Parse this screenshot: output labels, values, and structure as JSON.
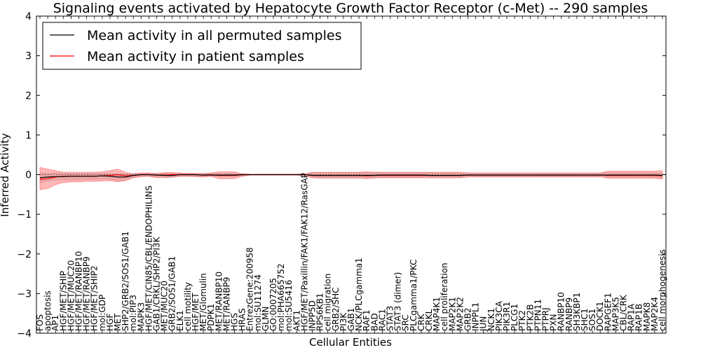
{
  "chart_data": {
    "type": "line",
    "title": "Signaling events activated by Hepatocyte Growth Factor Receptor (c-Met) -- 290 samples",
    "xlabel": "Cellular Entities",
    "ylabel": "Inferred Activity",
    "ylim": [
      -4,
      4
    ],
    "yticks": [
      -4,
      -3,
      -2,
      -1,
      0,
      1,
      2,
      3,
      4
    ],
    "legend_position": "top-left",
    "categories": [
      "FOS",
      "apoptosis",
      "AP1",
      "HGF/MET/SHIP",
      "HGF/MET/MUC20",
      "HGF/MET/RANBP10",
      "HGF/MET/RANBP9",
      "HGF/MET/SHIP2",
      "mol:GDP",
      "HGF",
      "MET",
      "SHP2/GRB2/SOS1/GAB1",
      "mol:PIP3",
      "MAPK3",
      "HGF/MET/CIN85/CBL/ENDOPHILINS",
      "GAB1/CRKL/SHP2/PI3K",
      "MET/MUC20",
      "GRB2/SOS1/GAB1",
      "ELK1",
      "cell motility",
      "HGF/MET",
      "MET/Glomulin",
      "PDPK1",
      "MET/RANBP10",
      "MET/RANBP9",
      "HGS",
      "HRAS",
      "EntrezGene:200958",
      "mol:SU11274",
      "GLMN",
      "GO:0007205",
      "mol:PHA665752",
      "mol:SU5416",
      "AKT1",
      "HGF/MET/Paxillin/FAK1/FAK12/RasGAP",
      "INPP5D",
      "RPS6KB1",
      "cell migration",
      "GRB2/SHC",
      "PI3K",
      "GAB1",
      "NCK/PLCgamma1",
      "RAF1",
      "BAD",
      "RAC1",
      "STAT3",
      "STAT3 (dimer)",
      "SRC",
      "PLCgamma1/PKC",
      "CRK",
      "CRKL",
      "MAP4K1",
      "cell proliferation",
      "MAP2K1",
      "MAP2K2",
      "GRB2",
      "INPPL1",
      "JUN",
      "NCK1",
      "PIK3CA",
      "PIK3R1",
      "PLCG1",
      "PTK2",
      "PTK2B",
      "PTPN11",
      "PTPRJ",
      "PXN",
      "RANBP10",
      "RANBP9",
      "SH3KBP1",
      "SHC1",
      "SOS1",
      "DOCK1",
      "RAPGEF1",
      "MAP3K5",
      "CBL/CRK",
      "RAP1A",
      "RAP1B",
      "MAPK8",
      "MAP2K4",
      "cell morphogenesis"
    ],
    "series": [
      {
        "name": "Mean activity in all permuted samples",
        "color": "#000000",
        "values": [
          -0.08,
          -0.06,
          -0.05,
          -0.05,
          -0.04,
          -0.04,
          -0.04,
          -0.04,
          -0.03,
          -0.04,
          -0.06,
          -0.06,
          -0.02,
          0.0,
          0.0,
          -0.01,
          -0.02,
          -0.02,
          0.0,
          0.0,
          0.0,
          -0.01,
          -0.01,
          -0.01,
          -0.01,
          -0.01,
          0.0,
          0.0,
          0.0,
          0.0,
          0.0,
          0.0,
          0.0,
          0.0,
          0.0,
          -0.02,
          -0.02,
          -0.02,
          -0.02,
          -0.02,
          -0.02,
          -0.02,
          -0.02,
          -0.02,
          -0.01,
          -0.01,
          -0.01,
          -0.01,
          -0.01,
          -0.01,
          -0.02,
          -0.02,
          -0.02,
          -0.02,
          -0.02,
          -0.01,
          -0.01,
          -0.01,
          -0.01,
          -0.01,
          -0.01,
          -0.01,
          -0.01,
          -0.01,
          -0.01,
          -0.01,
          -0.01,
          -0.01,
          -0.01,
          -0.01,
          -0.01,
          -0.01,
          -0.01,
          -0.01,
          -0.01,
          -0.01,
          -0.01,
          -0.01,
          -0.01,
          -0.01,
          -0.02
        ],
        "lower": [
          -0.2,
          -0.15,
          -0.14,
          -0.13,
          -0.13,
          -0.12,
          -0.12,
          -0.12,
          -0.11,
          -0.12,
          -0.14,
          -0.15,
          -0.07,
          -0.04,
          -0.04,
          -0.05,
          -0.08,
          -0.07,
          -0.04,
          -0.03,
          -0.03,
          -0.04,
          -0.04,
          -0.04,
          -0.04,
          -0.04,
          -0.02,
          -0.01,
          -0.01,
          -0.01,
          -0.01,
          -0.01,
          -0.01,
          -0.01,
          -0.02,
          -0.08,
          -0.09,
          -0.09,
          -0.09,
          -0.09,
          -0.09,
          -0.09,
          -0.09,
          -0.09,
          -0.07,
          -0.07,
          -0.07,
          -0.07,
          -0.07,
          -0.07,
          -0.08,
          -0.08,
          -0.08,
          -0.08,
          -0.08,
          -0.06,
          -0.06,
          -0.06,
          -0.06,
          -0.06,
          -0.06,
          -0.06,
          -0.06,
          -0.06,
          -0.06,
          -0.06,
          -0.06,
          -0.06,
          -0.06,
          -0.06,
          -0.06,
          -0.06,
          -0.06,
          -0.06,
          -0.06,
          -0.06,
          -0.06,
          -0.06,
          -0.06,
          -0.06,
          -0.08
        ],
        "upper": [
          0.04,
          0.03,
          0.04,
          0.03,
          0.03,
          0.03,
          0.03,
          0.03,
          0.03,
          0.03,
          0.02,
          0.02,
          0.03,
          0.04,
          0.04,
          0.03,
          0.04,
          0.03,
          0.04,
          0.03,
          0.03,
          0.03,
          0.03,
          0.03,
          0.03,
          0.03,
          0.02,
          0.01,
          0.01,
          0.01,
          0.01,
          0.01,
          0.01,
          0.01,
          0.02,
          0.05,
          0.05,
          0.05,
          0.05,
          0.05,
          0.05,
          0.05,
          0.05,
          0.05,
          0.05,
          0.05,
          0.05,
          0.05,
          0.05,
          0.05,
          0.04,
          0.04,
          0.04,
          0.04,
          0.04,
          0.04,
          0.04,
          0.04,
          0.04,
          0.04,
          0.04,
          0.04,
          0.04,
          0.04,
          0.04,
          0.04,
          0.04,
          0.04,
          0.04,
          0.04,
          0.04,
          0.04,
          0.04,
          0.04,
          0.04,
          0.04,
          0.04,
          0.04,
          0.04,
          0.04,
          0.04
        ]
      },
      {
        "name": "Mean activity in patient samples",
        "color": "#ff0000",
        "values": [
          -0.12,
          -0.1,
          -0.06,
          -0.04,
          -0.04,
          -0.04,
          -0.04,
          -0.04,
          -0.03,
          -0.02,
          0.0,
          -0.03,
          -0.02,
          0.0,
          0.0,
          -0.01,
          -0.01,
          0.0,
          0.0,
          0.0,
          0.0,
          -0.01,
          0.0,
          -0.02,
          -0.02,
          -0.02,
          0.0,
          0.0,
          0.0,
          0.0,
          0.0,
          0.0,
          0.0,
          0.0,
          0.0,
          -0.02,
          -0.02,
          -0.02,
          -0.02,
          -0.02,
          -0.02,
          -0.02,
          -0.03,
          -0.02,
          -0.02,
          -0.02,
          -0.02,
          -0.02,
          -0.02,
          -0.02,
          -0.02,
          -0.02,
          -0.02,
          -0.02,
          -0.02,
          -0.01,
          -0.01,
          -0.01,
          -0.01,
          -0.01,
          -0.01,
          -0.01,
          -0.01,
          -0.01,
          -0.01,
          -0.01,
          -0.01,
          -0.01,
          -0.01,
          -0.01,
          -0.01,
          -0.01,
          -0.01,
          -0.02,
          -0.02,
          -0.02,
          -0.02,
          -0.02,
          -0.02,
          -0.02,
          -0.03
        ],
        "lower": [
          -0.38,
          -0.35,
          -0.25,
          -0.2,
          -0.18,
          -0.18,
          -0.17,
          -0.17,
          -0.16,
          -0.15,
          -0.18,
          -0.15,
          -0.08,
          -0.05,
          -0.04,
          -0.08,
          -0.07,
          -0.05,
          -0.04,
          -0.04,
          -0.05,
          -0.06,
          -0.04,
          -0.1,
          -0.1,
          -0.1,
          -0.04,
          -0.01,
          -0.01,
          -0.01,
          -0.01,
          -0.01,
          -0.01,
          -0.01,
          -0.02,
          -0.08,
          -0.08,
          -0.08,
          -0.08,
          -0.08,
          -0.08,
          -0.08,
          -0.1,
          -0.08,
          -0.08,
          -0.08,
          -0.08,
          -0.08,
          -0.08,
          -0.08,
          -0.08,
          -0.08,
          -0.08,
          -0.08,
          -0.08,
          -0.06,
          -0.05,
          -0.05,
          -0.05,
          -0.05,
          -0.05,
          -0.05,
          -0.05,
          -0.05,
          -0.05,
          -0.05,
          -0.05,
          -0.05,
          -0.05,
          -0.05,
          -0.05,
          -0.05,
          -0.05,
          -0.09,
          -0.09,
          -0.09,
          -0.09,
          -0.09,
          -0.09,
          -0.09,
          -0.11
        ],
        "upper": [
          0.18,
          0.14,
          0.1,
          0.06,
          0.06,
          0.06,
          0.06,
          0.06,
          0.07,
          0.1,
          0.14,
          0.06,
          0.02,
          0.04,
          0.04,
          0.03,
          0.05,
          0.05,
          0.04,
          0.03,
          0.03,
          0.03,
          0.04,
          0.07,
          0.07,
          0.07,
          0.02,
          0.01,
          0.01,
          0.01,
          0.01,
          0.01,
          0.01,
          0.01,
          0.02,
          0.06,
          0.06,
          0.06,
          0.06,
          0.06,
          0.06,
          0.06,
          0.07,
          0.06,
          0.06,
          0.06,
          0.06,
          0.06,
          0.06,
          0.06,
          0.06,
          0.06,
          0.06,
          0.06,
          0.06,
          0.04,
          0.04,
          0.04,
          0.04,
          0.04,
          0.04,
          0.04,
          0.04,
          0.04,
          0.04,
          0.04,
          0.04,
          0.04,
          0.04,
          0.04,
          0.04,
          0.04,
          0.04,
          0.09,
          0.09,
          0.09,
          0.09,
          0.09,
          0.09,
          0.09,
          0.1
        ]
      }
    ]
  }
}
